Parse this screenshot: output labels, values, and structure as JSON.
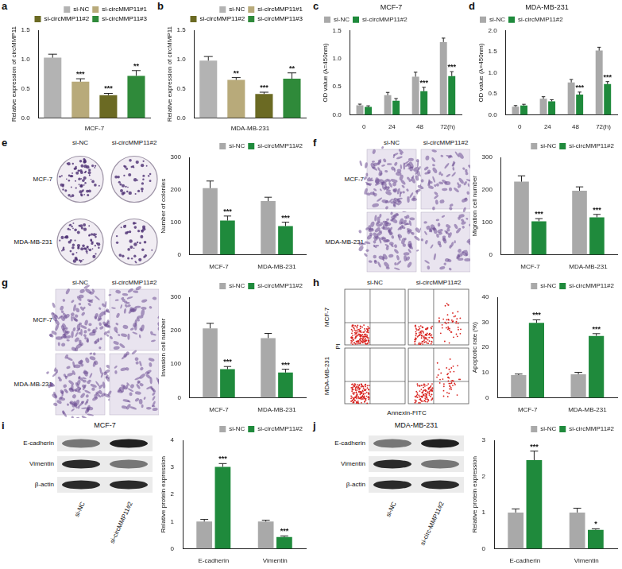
{
  "chart_data": [
    {
      "panel_label": "a",
      "type": "bar",
      "categories": [
        "si-NC",
        "si-circMMP11#1",
        "si-circMMP11#2",
        "si-circMMP11#3"
      ],
      "values": [
        1.03,
        0.62,
        0.39,
        0.72
      ],
      "errors": [
        0.06,
        0.05,
        0.03,
        0.09
      ],
      "significance": [
        null,
        "***",
        "***",
        "**"
      ],
      "colors": [
        "#b3b3b3",
        "#b8aa7a",
        "#6b6a23",
        "#2f8a3a"
      ],
      "x_label": "MCF-7",
      "y_label": "Relative expression of circMMP11",
      "ylim": [
        0,
        1.5
      ],
      "yticks": [
        {
          "value": 0,
          "label": "0.0"
        },
        0.5,
        {
          "value": 1,
          "label": "1.0"
        },
        1.5
      ],
      "grid": false,
      "legend": "top-right",
      "tick_labels": "y"
    },
    {
      "panel_label": "b",
      "type": "bar",
      "categories": [
        "si-NC",
        "si-circMMP11#1",
        "si-circMMP11#2",
        "si-circMMP11#3"
      ],
      "values": [
        0.98,
        0.65,
        0.41,
        0.67
      ],
      "errors": [
        0.07,
        0.04,
        0.03,
        0.1
      ],
      "significance": [
        null,
        "**",
        "***",
        "**"
      ],
      "colors": [
        "#b3b3b3",
        "#b8aa7a",
        "#6b6a23",
        "#2f8a3a"
      ],
      "x_label": "MDA-MB-231",
      "y_label": "Relative expression of circMMP11",
      "ylim": [
        0,
        1.5
      ],
      "yticks": [
        {
          "value": 0,
          "label": "0.0"
        },
        0.5,
        {
          "value": 1,
          "label": "1.0"
        },
        1.5
      ],
      "grid": false,
      "legend": "top-right",
      "tick_labels": "y"
    },
    {
      "panel_label": "c",
      "type": "bar",
      "title": "MCF-7",
      "categories": [
        "0",
        "24",
        "48",
        "72(h)"
      ],
      "series": [
        {
          "name": "si-NC",
          "color": "#a9a9a9",
          "values": [
            0.17,
            0.35,
            0.68,
            1.3
          ],
          "errors": [
            0.02,
            0.05,
            0.08,
            0.07
          ]
        },
        {
          "name": "si-circMMP11#2",
          "color": "#1f8a3c",
          "values": [
            0.14,
            0.25,
            0.42,
            0.69
          ],
          "errors": [
            0.02,
            0.04,
            0.07,
            0.08
          ],
          "significance": [
            null,
            null,
            "***",
            "***"
          ]
        }
      ],
      "y_label": "OD value (λ=450nm)",
      "ylim": [
        0,
        1.5
      ],
      "yticks": [
        {
          "value": 0,
          "label": "0.0"
        },
        0.5,
        {
          "value": 1,
          "label": "1.0"
        },
        1.5
      ],
      "grid": false,
      "legend": "top-left"
    },
    {
      "panel_label": "d",
      "type": "bar",
      "title": "MDA-MB-231",
      "categories": [
        "0",
        "24",
        "48",
        "72(h)"
      ],
      "series": [
        {
          "name": "si-NC",
          "color": "#a9a9a9",
          "values": [
            0.19,
            0.38,
            0.77,
            1.53
          ],
          "errors": [
            0.03,
            0.05,
            0.07,
            0.08
          ]
        },
        {
          "name": "si-circMMP11#2",
          "color": "#1f8a3c",
          "values": [
            0.22,
            0.32,
            0.48,
            0.73
          ],
          "errors": [
            0.03,
            0.04,
            0.06,
            0.06
          ],
          "significance": [
            null,
            null,
            "***",
            "***"
          ]
        }
      ],
      "y_label": "OD value (λ=450nm)",
      "ylim": [
        0,
        2
      ],
      "yticks": [
        {
          "value": 0,
          "label": "0.0"
        },
        0.5,
        {
          "value": 1,
          "label": "1.0"
        },
        1.5,
        {
          "value": 2,
          "label": "2.0"
        }
      ],
      "grid": false,
      "legend": "top-left"
    },
    {
      "panel_label": "e",
      "type": "bar",
      "categories": [
        "MCF-7",
        "MDA-MB-231"
      ],
      "series": [
        {
          "name": "si-NC",
          "color": "#a9a9a9",
          "values": [
            205,
            165
          ],
          "errors": [
            22,
            12
          ]
        },
        {
          "name": "si-circMMP11#2",
          "color": "#1f8a3c",
          "values": [
            105,
            88
          ],
          "errors": [
            14,
            12
          ],
          "significance": [
            "***",
            "***"
          ]
        }
      ],
      "y_label": "Number of colonies",
      "ylim": [
        0,
        300
      ],
      "yticks": [
        0,
        100,
        200,
        300
      ],
      "grid": false,
      "legend": "top-right",
      "image": {
        "column_labels": [
          "si-NC",
          "si-circMMP11#2"
        ],
        "row_labels": [
          "MCF-7",
          "MDA-MB-231"
        ]
      }
    },
    {
      "panel_label": "f",
      "type": "bar",
      "categories": [
        "MCF-7",
        "MDA-MB-231"
      ],
      "series": [
        {
          "name": "si-NC",
          "color": "#a9a9a9",
          "values": [
            225,
            197
          ],
          "errors": [
            18,
            12
          ]
        },
        {
          "name": "si-circMMP11#2",
          "color": "#1f8a3c",
          "values": [
            103,
            115
          ],
          "errors": [
            8,
            9
          ],
          "significance": [
            "***",
            "***"
          ]
        }
      ],
      "y_label": "Migration cell number",
      "ylim": [
        0,
        300
      ],
      "yticks": [
        0,
        100,
        200,
        300
      ],
      "grid": false,
      "legend": "top-right",
      "image": {
        "column_labels": [
          "si-NC",
          "si-circMMP11#2"
        ],
        "row_labels": [
          "MCF-7",
          "MDA-MB-231"
        ]
      }
    },
    {
      "panel_label": "g",
      "type": "bar",
      "categories": [
        "MCF-7",
        "MDA-MB-231"
      ],
      "series": [
        {
          "name": "si-NC",
          "color": "#a9a9a9",
          "values": [
            207,
            178
          ],
          "errors": [
            15,
            14
          ]
        },
        {
          "name": "si-circMMP11#2",
          "color": "#1f8a3c",
          "values": [
            85,
            75
          ],
          "errors": [
            8,
            10
          ],
          "significance": [
            "***",
            "***"
          ]
        }
      ],
      "y_label": "Invasion cell number",
      "ylim": [
        0,
        300
      ],
      "yticks": [
        0,
        100,
        200,
        300
      ],
      "grid": false,
      "legend": "top-right",
      "image": {
        "column_labels": [
          "si-NC",
          "si-circMMP11#2"
        ],
        "row_labels": [
          "MCF-7",
          "MDA-MB-231"
        ]
      }
    },
    {
      "panel_label": "h",
      "type": "bar",
      "categories": [
        "MCF-7",
        "MDA-MB-231"
      ],
      "series": [
        {
          "name": "si-NC",
          "color": "#a9a9a9",
          "values": [
            9.0,
            9.3
          ],
          "errors": [
            0.4,
            0.8
          ]
        },
        {
          "name": "si-circMMP11#2",
          "color": "#1f8a3c",
          "values": [
            29.8,
            24.6
          ],
          "errors": [
            1.2,
            0.9
          ],
          "significance": [
            "***",
            "***"
          ]
        }
      ],
      "y_label": "Apoptotic rate (%)",
      "ylim": [
        0,
        40
      ],
      "yticks": [
        0,
        10,
        20,
        30,
        40
      ],
      "grid": false,
      "legend": "top-right",
      "image": {
        "column_labels": [
          "si-NC",
          "si-circMMP11#2"
        ],
        "row_labels": [
          "MCF-7",
          "MDA-MB-231"
        ],
        "x_label": "Annexin-FITC",
        "y_label": "PI"
      }
    },
    {
      "panel_label": "i",
      "type": "bar",
      "title": "MCF-7",
      "categories": [
        "E-cadherin",
        "Vimentin"
      ],
      "series": [
        {
          "name": "si-NC",
          "color": "#a9a9a9",
          "values": [
            1.0,
            1.0
          ],
          "errors": [
            0.08,
            0.05
          ]
        },
        {
          "name": "si-circMMP11#2",
          "color": "#1f8a3c",
          "values": [
            3.02,
            0.43
          ],
          "errors": [
            0.12,
            0.04
          ],
          "significance": [
            "***",
            "***"
          ]
        }
      ],
      "y_label": "Relative protein expression",
      "ylim": [
        0,
        4
      ],
      "yticks": [
        0,
        1,
        2,
        3,
        4
      ],
      "grid": false,
      "legend": "top-right",
      "image": {
        "row_labels": [
          "E-cadherin",
          "Vimentin",
          "β-actin"
        ],
        "column_labels": [
          "si-NC",
          "si-circMMP11#2"
        ]
      }
    },
    {
      "panel_label": "j",
      "type": "bar",
      "title": "MDA-MB-231",
      "categories": [
        "E-cadherin",
        "Vimentin"
      ],
      "series": [
        {
          "name": "si-NC",
          "color": "#a9a9a9",
          "values": [
            1.0,
            1.0
          ],
          "errors": [
            0.1,
            0.12
          ]
        },
        {
          "name": "si-circMMP11#2",
          "color": "#1f8a3c",
          "values": [
            2.45,
            0.52
          ],
          "errors": [
            0.25,
            0.03
          ],
          "significance": [
            "***",
            "*"
          ]
        }
      ],
      "y_label": "Relative protein expression",
      "ylim": [
        0,
        3
      ],
      "yticks": [
        0,
        1,
        2,
        3
      ],
      "grid": false,
      "legend": "top-right",
      "image": {
        "row_labels": [
          "E-cadherin",
          "Vimentin",
          "β-actin"
        ],
        "column_labels": [
          "si-NC",
          "si-circ-MMP11#2"
        ]
      }
    }
  ]
}
